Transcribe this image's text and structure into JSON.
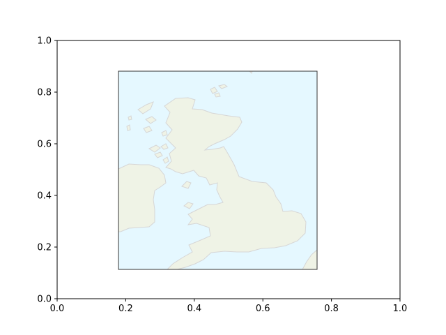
{
  "chart_data": {
    "type": "map",
    "xlim": [
      0.0,
      1.0
    ],
    "ylim": [
      0.0,
      1.0
    ],
    "x_ticks": [
      "0.0",
      "0.2",
      "0.4",
      "0.6",
      "0.8",
      "1.0"
    ],
    "y_ticks": [
      "0.0",
      "0.2",
      "0.4",
      "0.6",
      "0.8",
      "1.0"
    ],
    "map_extent": {
      "x": [
        0.18,
        0.76
      ],
      "y": [
        0.11,
        0.88
      ]
    },
    "map_region": "British Isles",
    "grid": false
  },
  "colors": {
    "ocean": "#e5f8ff",
    "land": "#eff3e6",
    "coastline": "#d6d6d6",
    "frame": "#333333"
  }
}
